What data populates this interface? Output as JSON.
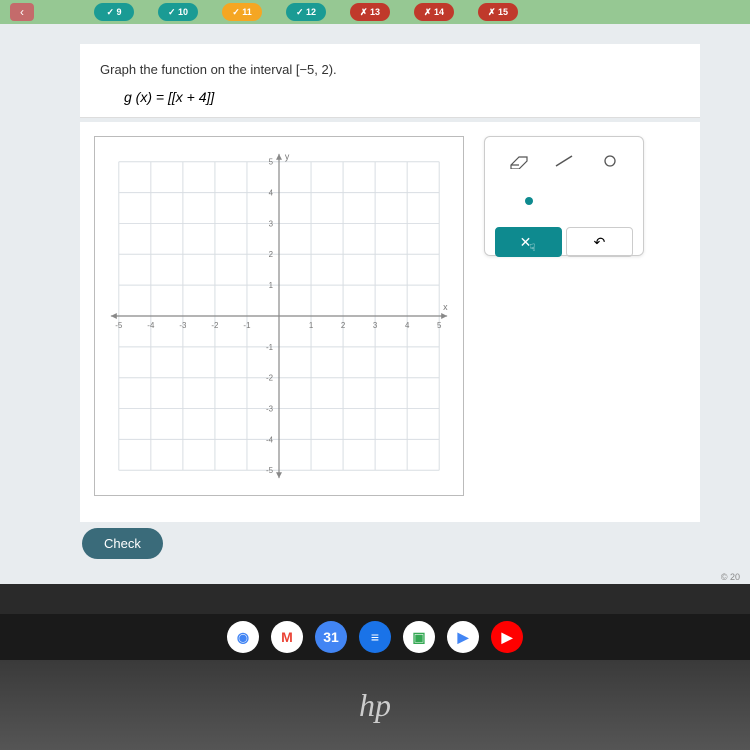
{
  "nav": {
    "pills": [
      {
        "label": "✓ 9",
        "color": "#1a9b94"
      },
      {
        "label": "✓ 10",
        "color": "#1a9b94"
      },
      {
        "label": "✓ 11",
        "color": "#f5a623"
      },
      {
        "label": "✓ 12",
        "color": "#1a9b94"
      },
      {
        "label": "✗ 13",
        "color": "#c0392b"
      },
      {
        "label": "✗ 14",
        "color": "#c0392b"
      },
      {
        "label": "✗ 15",
        "color": "#c0392b"
      }
    ]
  },
  "question": {
    "prompt": "Graph the function on the interval [−5, 2).",
    "formula_lhs": "g (x) = ",
    "formula_rhs": "[[x + 4]]"
  },
  "graph": {
    "xmin": -5,
    "xmax": 5,
    "ymin": -5,
    "ymax": 5,
    "tick_step": 1,
    "grid_color": "#d8dde2",
    "axis_color": "#888",
    "label_color": "#777",
    "bg": "#ffffff",
    "x_axis_label": "x",
    "y_axis_label": "y"
  },
  "tools": {
    "eraser_icon": "⌫",
    "line_icon": "╲",
    "open_circle_icon": "○",
    "closed_circle_icon": "●",
    "clear_label": "✕",
    "undo_label": "↶"
  },
  "buttons": {
    "check": "Check"
  },
  "footer": {
    "copyright": "© 20"
  },
  "taskbar": {
    "icons": [
      {
        "glyph": "◉",
        "bg": "#ffffff",
        "fg": "#4285f4"
      },
      {
        "glyph": "M",
        "bg": "#ffffff",
        "fg": "#ea4335"
      },
      {
        "glyph": "31",
        "bg": "#4285f4",
        "fg": "#ffffff"
      },
      {
        "glyph": "≡",
        "bg": "#1a73e8",
        "fg": "#ffffff"
      },
      {
        "glyph": "▣",
        "bg": "#ffffff",
        "fg": "#34a853"
      },
      {
        "glyph": "▶",
        "bg": "#ffffff",
        "fg": "#4285f4"
      },
      {
        "glyph": "▶",
        "bg": "#ff0000",
        "fg": "#ffffff"
      }
    ]
  },
  "logo": "hp"
}
